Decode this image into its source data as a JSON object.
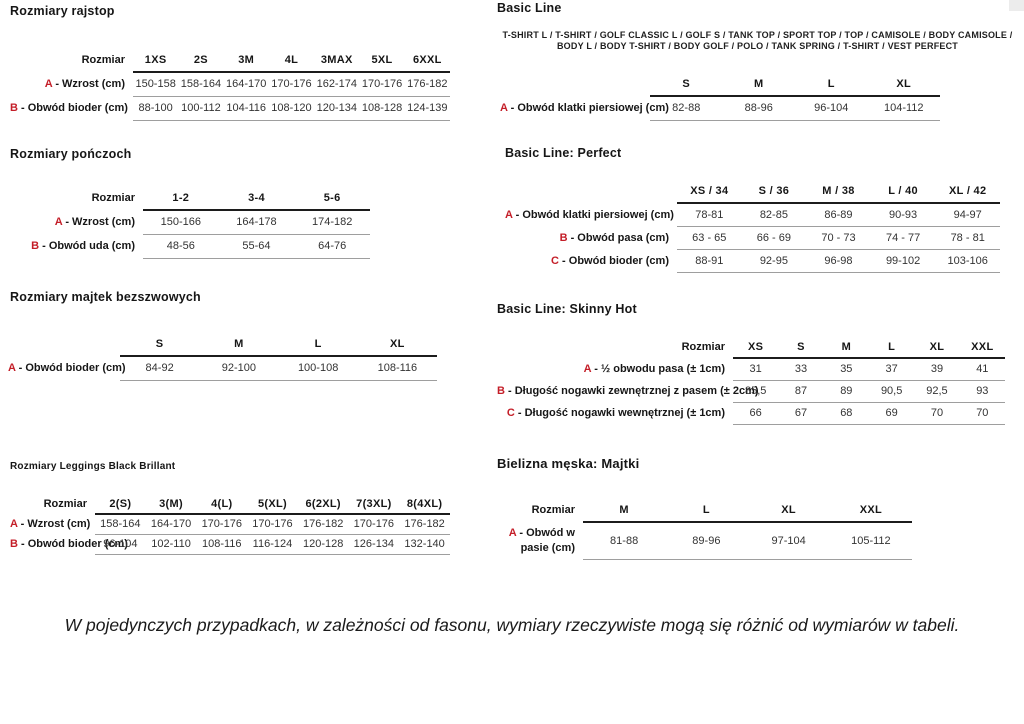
{
  "colors": {
    "accent_red": "#c41e28",
    "heavy_rule": "#1c1c1c",
    "light_rule": "#9e9e9e"
  },
  "note": "W pojedynczych przypadkach, w zależności od fasonu, wymiary rzeczywiste mogą się różnić od wymiarów w tabeli.",
  "sections": [
    {
      "title": "Rozmiary rajstop",
      "table": {
        "corner": "Rozmiar",
        "columns": [
          "1XS",
          "2S",
          "3M",
          "4L",
          "3MAX",
          "5XL",
          "6XXL"
        ],
        "rows": [
          {
            "letter": "A",
            "label": "Wzrost (cm)",
            "values": [
              "150-158",
              "158-164",
              "164-170",
              "170-176",
              "162-174",
              "170-176",
              "176-182"
            ]
          },
          {
            "letter": "B",
            "label": "Obwód bioder (cm)",
            "values": [
              "88-100",
              "100-112",
              "104-116",
              "108-120",
              "120-134",
              "108-128",
              "124-139"
            ]
          }
        ]
      }
    },
    {
      "title": "Rozmiary pończoch",
      "table": {
        "corner": "Rozmiar",
        "columns": [
          "1-2",
          "3-4",
          "5-6"
        ],
        "rows": [
          {
            "letter": "A",
            "label": "Wzrost (cm)",
            "values": [
              "150-166",
              "164-178",
              "174-182"
            ]
          },
          {
            "letter": "B",
            "label": "Obwód uda (cm)",
            "values": [
              "48-56",
              "55-64",
              "64-76"
            ]
          }
        ]
      }
    },
    {
      "title": "Rozmiary majtek bezszwowych",
      "table": {
        "corner": "",
        "columns": [
          "S",
          "M",
          "L",
          "XL"
        ],
        "rows": [
          {
            "letter": "A",
            "label": "Obwód bioder (cm)",
            "values": [
              "84-92",
              "92-100",
              "100-108",
              "108-116"
            ]
          }
        ]
      }
    },
    {
      "title": "Rozmiary Leggings Black Brillant",
      "table": {
        "corner": "Rozmiar",
        "columns": [
          "2(S)",
          "3(M)",
          "4(L)",
          "5(XL)",
          "6(2XL)",
          "7(3XL)",
          "8(4XL)"
        ],
        "rows": [
          {
            "letter": "A",
            "label": "Wzrost (cm)",
            "values": [
              "158-164",
              "164-170",
              "170-176",
              "170-176",
              "176-182",
              "170-176",
              "176-182"
            ]
          },
          {
            "letter": "B",
            "label": "Obwód bioder (cm)",
            "values": [
              "96-104",
              "102-110",
              "108-116",
              "116-124",
              "120-128",
              "126-134",
              "132-140"
            ]
          }
        ]
      }
    },
    {
      "title": "Basic Line",
      "subtitle": "T-SHIRT L / T-SHIRT / GOLF CLASSIC L / GOLF S / TANK TOP / SPORT TOP / TOP / CAMISOLE / BODY CAMISOLE / BODY L / BODY T-SHIRT / BODY GOLF / POLO / TANK SPRING / T-SHIRT / VEST PERFECT",
      "table": {
        "corner": "",
        "columns": [
          "S",
          "M",
          "L",
          "XL"
        ],
        "rows": [
          {
            "letter": "A",
            "label": "Obwód klatki piersiowej (cm)",
            "values": [
              "82-88",
              "88-96",
              "96-104",
              "104-112"
            ]
          }
        ]
      }
    },
    {
      "title": "Basic Line: Perfect",
      "table": {
        "corner": "",
        "columns": [
          "XS / 34",
          "S / 36",
          "M / 38",
          "L / 40",
          "XL / 42"
        ],
        "rows": [
          {
            "letter": "A",
            "label": "Obwód klatki piersiowej (cm)",
            "values": [
              "78-81",
              "82-85",
              "86-89",
              "90-93",
              "94-97"
            ]
          },
          {
            "letter": "B",
            "label": "Obwód pasa (cm)",
            "values": [
              "63 - 65",
              "66 - 69",
              "70 - 73",
              "74 - 77",
              "78 - 81"
            ]
          },
          {
            "letter": "C",
            "label": "Obwód bioder (cm)",
            "values": [
              "88-91",
              "92-95",
              "96-98",
              "99-102",
              "103-106"
            ]
          }
        ]
      }
    },
    {
      "title": "Basic Line: Skinny Hot",
      "table": {
        "corner": "Rozmiar",
        "columns": [
          "XS",
          "S",
          "M",
          "L",
          "XL",
          "XXL"
        ],
        "rows": [
          {
            "letter": "A",
            "label": "½ obwodu pasa (± 1cm)",
            "values": [
              "31",
              "33",
              "35",
              "37",
              "39",
              "41"
            ]
          },
          {
            "letter": "B",
            "label": "Długość nogawki zewnętrznej z pasem (± 2cm)",
            "values": [
              "85,5",
              "87",
              "89",
              "90,5",
              "92,5",
              "93"
            ]
          },
          {
            "letter": "C",
            "label": "Długość nogawki wewnętrznej (± 1cm)",
            "values": [
              "66",
              "67",
              "68",
              "69",
              "70",
              "70"
            ]
          }
        ]
      }
    },
    {
      "title": "Bielizna męska: Majtki",
      "table": {
        "corner": "Rozmiar",
        "columns": [
          "M",
          "L",
          "XL",
          "XXL"
        ],
        "rows": [
          {
            "letter": "A",
            "label": "Obwód w pasie (cm)",
            "values": [
              "81-88",
              "89-96",
              "97-104",
              "105-112"
            ]
          }
        ]
      }
    }
  ]
}
